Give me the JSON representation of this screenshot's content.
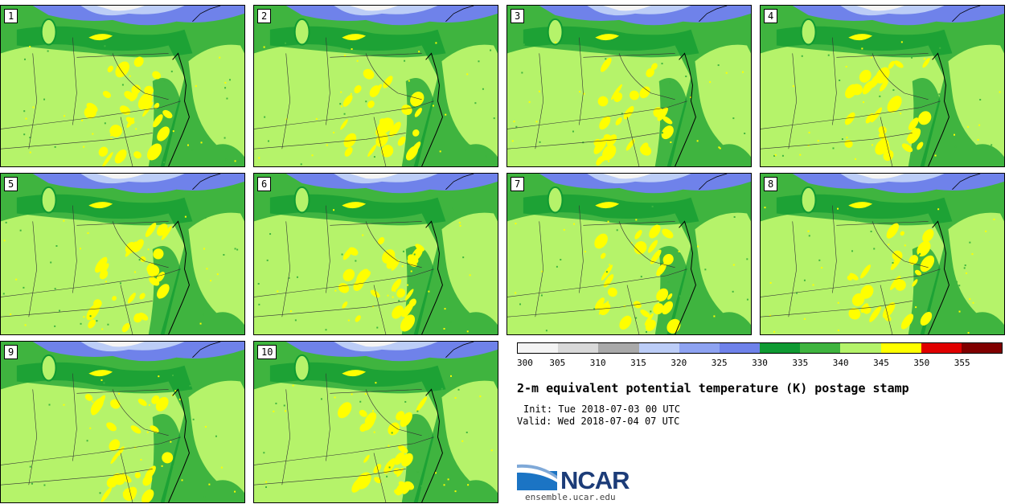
{
  "panels": [
    {
      "label": "1"
    },
    {
      "label": "2"
    },
    {
      "label": "3"
    },
    {
      "label": "4"
    },
    {
      "label": "5"
    },
    {
      "label": "6"
    },
    {
      "label": "7"
    },
    {
      "label": "8"
    },
    {
      "label": "9"
    },
    {
      "label": "10"
    }
  ],
  "colorbar": {
    "ticks": [
      "300",
      "305",
      "310",
      "315",
      "320",
      "325",
      "330",
      "335",
      "340",
      "345",
      "350",
      "355"
    ],
    "colors": [
      "#f4f4f4",
      "#d9d9d9",
      "#a9a9a9",
      "#bccdf7",
      "#8ea3f2",
      "#6f82ea",
      "#0f9a32",
      "#3fb43f",
      "#b5f36a",
      "#ffff00",
      "#e00000",
      "#800000"
    ]
  },
  "title": "2-m equivalent potential temperature (K) postage stamp",
  "init": "Init: Tue 2018-07-03 00 UTC",
  "valid": "Valid: Wed 2018-07-04 07 UTC",
  "logo_text": "NCAR",
  "logo_icon": "ncar-swoosh-icon",
  "site": "ensemble.ucar.edu"
}
